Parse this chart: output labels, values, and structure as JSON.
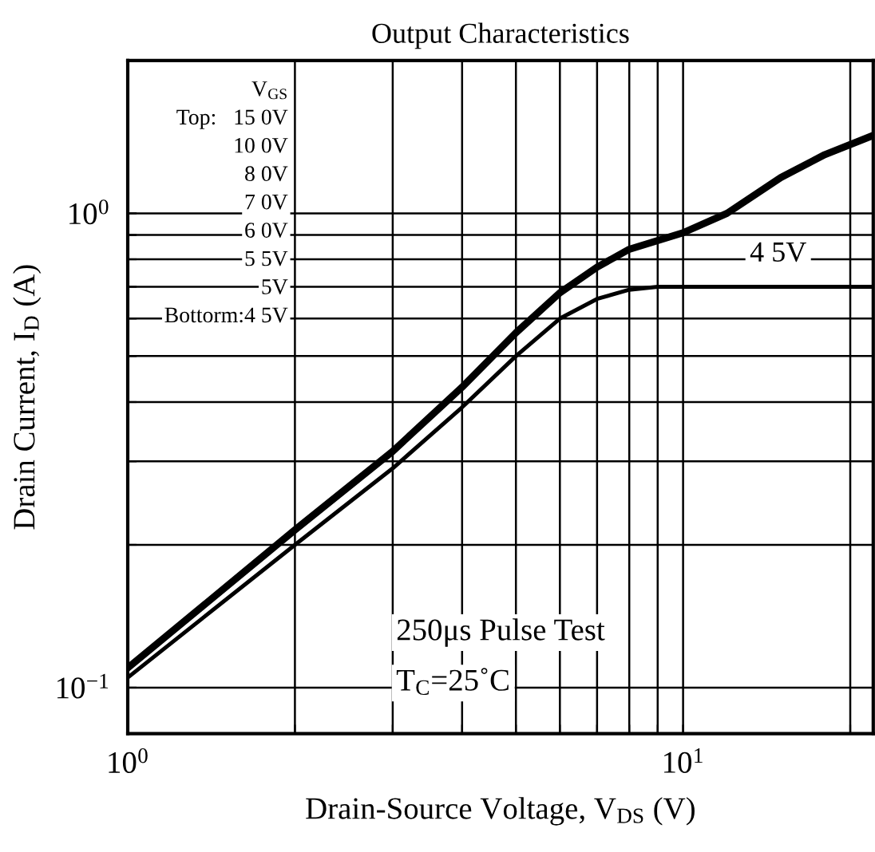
{
  "chart_data": {
    "type": "line",
    "title": "Output Characteristics",
    "xlabel": "Drain-Source Voltage, V$_{DS}$ (V)",
    "ylabel": "Drain Current, I$_{D}$ (A)",
    "log": "xy",
    "grid": true,
    "legend": false,
    "marker": "none",
    "line_style": "solid",
    "xlim": [
      1,
      22
    ],
    "ylim": [
      0.08,
      2.1
    ],
    "xticks": [
      {
        "value": 1,
        "label": "10$^{0}$"
      },
      {
        "value": 2,
        "label": null
      },
      {
        "value": 3,
        "label": null
      },
      {
        "value": 4,
        "label": null
      },
      {
        "value": 5,
        "label": null
      },
      {
        "value": 6,
        "label": null
      },
      {
        "value": 7,
        "label": null
      },
      {
        "value": 8,
        "label": null
      },
      {
        "value": 9,
        "label": null
      },
      {
        "value": 10,
        "label": "10$^{1}$"
      },
      {
        "value": 20,
        "label": null
      }
    ],
    "yticks": [
      {
        "value": 0.1,
        "label": "10$^{−1}$"
      },
      {
        "value": 0.2,
        "label": null
      },
      {
        "value": 0.3,
        "label": null
      },
      {
        "value": 0.4,
        "label": null
      },
      {
        "value": 0.5,
        "label": null
      },
      {
        "value": 0.6,
        "label": null
      },
      {
        "value": 0.7,
        "label": null
      },
      {
        "value": 0.8,
        "label": null
      },
      {
        "value": 0.9,
        "label": null
      },
      {
        "value": 1,
        "label": "10$^{0}$"
      }
    ],
    "series": [
      {
        "color": "#000000",
        "x": [
          1,
          2,
          3,
          4,
          5,
          6,
          7,
          8,
          10,
          12,
          15,
          18,
          22
        ],
        "values": [
          0.11,
          0.215,
          0.315,
          0.43,
          0.56,
          0.68,
          0.77,
          0.84,
          0.91,
          1.0,
          1.19,
          1.33,
          1.46
        ]
      },
      {
        "name": "4 5V",
        "color": "#000000",
        "x": [
          1,
          2,
          3,
          4,
          5,
          6,
          7,
          8,
          9,
          10,
          22
        ],
        "values": [
          0.105,
          0.2,
          0.29,
          0.39,
          0.5,
          0.6,
          0.66,
          0.69,
          0.7,
          0.7,
          0.7
        ]
      }
    ],
    "annotations": [
      "V$_{GS}$",
      "Top:   15 0V",
      "10 0V",
      "8 0V",
      "7 0V",
      "6 0V",
      "5 5V",
      "5V",
      "Bottorm:4 5V",
      "250μs Pulse Test",
      "T$_{C}$=25˚C"
    ]
  }
}
